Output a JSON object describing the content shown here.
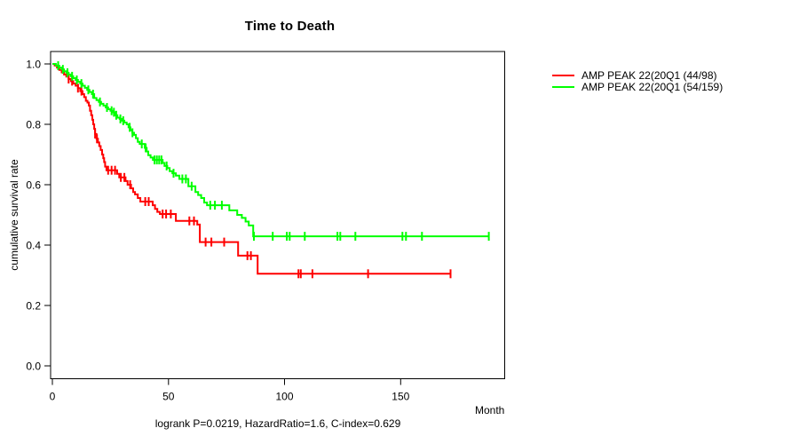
{
  "title": "Time to Death",
  "y_axis": {
    "label": "cumulative survival rate",
    "tick_labels": [
      "1.0",
      "0.8",
      "0.6",
      "0.4",
      "0.2",
      "0.0"
    ]
  },
  "x_axis": {
    "label": "Month",
    "tick_labels": [
      "0",
      "50",
      "100",
      "150"
    ]
  },
  "caption": "logrank P=0.0219, HazardRatio=1.6, C-index=0.629",
  "chart_data": {
    "type": "line",
    "subtype": "kaplan_meier_step",
    "title": "Time to Death",
    "xlabel": "Month",
    "ylabel": "cumulative survival rate",
    "xlim": [
      0,
      195
    ],
    "ylim": [
      0,
      1
    ],
    "x_ticks": [
      0,
      50,
      100,
      150
    ],
    "y_ticks": [
      0,
      0.2,
      0.4,
      0.6,
      0.8,
      1
    ],
    "grid": false,
    "legend_position": "right_outside",
    "annotation": "logrank P=0.0219, HazardRatio=1.6, C-index=0.629",
    "series": [
      {
        "name": "AMP PEAK 22(20Q1 (44/98)",
        "color": "#ff0000",
        "end_month": 171.5,
        "points": [
          [
            0,
            1.0
          ],
          [
            1,
            0.995
          ],
          [
            2,
            0.988
          ],
          [
            3,
            0.98
          ],
          [
            4,
            0.972
          ],
          [
            5,
            0.965
          ],
          [
            6,
            0.958
          ],
          [
            7,
            0.95
          ],
          [
            8,
            0.943
          ],
          [
            9,
            0.935
          ],
          [
            10,
            0.928
          ],
          [
            11,
            0.92
          ],
          [
            12,
            0.91
          ],
          [
            13,
            0.9
          ],
          [
            13.7,
            0.89
          ],
          [
            14.4,
            0.878
          ],
          [
            15.1,
            0.872
          ],
          [
            15.7,
            0.862
          ],
          [
            16.2,
            0.845
          ],
          [
            16.7,
            0.83
          ],
          [
            17.2,
            0.815
          ],
          [
            17.6,
            0.8
          ],
          [
            18,
            0.785
          ],
          [
            18.4,
            0.768
          ],
          [
            19,
            0.752
          ],
          [
            19.6,
            0.74
          ],
          [
            20.2,
            0.728
          ],
          [
            20.8,
            0.715
          ],
          [
            21.4,
            0.7
          ],
          [
            21.9,
            0.688
          ],
          [
            22.3,
            0.675
          ],
          [
            22.7,
            0.66
          ],
          [
            23.3,
            0.648
          ],
          [
            27.9,
            0.636
          ],
          [
            28.8,
            0.624
          ],
          [
            31.5,
            0.612
          ],
          [
            32.4,
            0.6
          ],
          [
            33.9,
            0.588
          ],
          [
            34.8,
            0.576
          ],
          [
            35.6,
            0.568
          ],
          [
            36.8,
            0.556
          ],
          [
            37.9,
            0.544
          ],
          [
            43.2,
            0.532
          ],
          [
            44.2,
            0.52
          ],
          [
            45.2,
            0.51
          ],
          [
            46.3,
            0.503
          ],
          [
            53.2,
            0.48
          ],
          [
            62.4,
            0.468
          ],
          [
            63.5,
            0.41
          ],
          [
            80,
            0.365
          ],
          [
            88.4,
            0.305
          ]
        ],
        "censor_months": [
          7,
          8.5,
          11,
          12.5,
          18.4,
          19.2,
          24,
          25.5,
          27,
          29.5,
          31,
          33.5,
          40,
          41.5,
          47.5,
          49,
          51,
          59,
          61,
          66,
          68.5,
          74,
          84,
          85.5,
          106,
          107,
          112,
          136,
          171.5
        ]
      },
      {
        "name": "AMP PEAK 22(20Q1 (54/159)",
        "color": "#00ff00",
        "end_month": 188,
        "points": [
          [
            0,
            1.0
          ],
          [
            1.5,
            0.994
          ],
          [
            3,
            0.988
          ],
          [
            4,
            0.982
          ],
          [
            5,
            0.976
          ],
          [
            6,
            0.971
          ],
          [
            7,
            0.965
          ],
          [
            8,
            0.959
          ],
          [
            9,
            0.953
          ],
          [
            10,
            0.947
          ],
          [
            11,
            0.941
          ],
          [
            12,
            0.935
          ],
          [
            13,
            0.928
          ],
          [
            14,
            0.921
          ],
          [
            15,
            0.914
          ],
          [
            16,
            0.907
          ],
          [
            17,
            0.9
          ],
          [
            18,
            0.887
          ],
          [
            19,
            0.88
          ],
          [
            20,
            0.874
          ],
          [
            21,
            0.868
          ],
          [
            22,
            0.862
          ],
          [
            23,
            0.856
          ],
          [
            24,
            0.85
          ],
          [
            25,
            0.845
          ],
          [
            26,
            0.84
          ],
          [
            27,
            0.83
          ],
          [
            28,
            0.822
          ],
          [
            29,
            0.818
          ],
          [
            30,
            0.812
          ],
          [
            31,
            0.806
          ],
          [
            32,
            0.8
          ],
          [
            32.8,
            0.79
          ],
          [
            33.6,
            0.78
          ],
          [
            34.4,
            0.772
          ],
          [
            35.2,
            0.765
          ],
          [
            36,
            0.754
          ],
          [
            36.8,
            0.742
          ],
          [
            37.6,
            0.735
          ],
          [
            39.8,
            0.722
          ],
          [
            40.6,
            0.71
          ],
          [
            41.3,
            0.698
          ],
          [
            42.3,
            0.69
          ],
          [
            43.3,
            0.682
          ],
          [
            47.5,
            0.672
          ],
          [
            48.3,
            0.662
          ],
          [
            49.5,
            0.655
          ],
          [
            50.5,
            0.645
          ],
          [
            51.7,
            0.638
          ],
          [
            53.2,
            0.63
          ],
          [
            54.7,
            0.619
          ],
          [
            58.6,
            0.595
          ],
          [
            61.6,
            0.576
          ],
          [
            62.8,
            0.566
          ],
          [
            64.1,
            0.556
          ],
          [
            65.4,
            0.541
          ],
          [
            66.6,
            0.532
          ],
          [
            76.2,
            0.515
          ],
          [
            79.6,
            0.5
          ],
          [
            81.6,
            0.49
          ],
          [
            83.2,
            0.478
          ],
          [
            84.6,
            0.465
          ],
          [
            86.5,
            0.429
          ]
        ],
        "censor_months": [
          2.5,
          4.5,
          6.5,
          8.5,
          10.5,
          12.5,
          15.5,
          17.5,
          20.5,
          23.5,
          25.5,
          26.5,
          27.5,
          29.3,
          30.5,
          33.3,
          34.5,
          38.5,
          40.2,
          44,
          45,
          46,
          47,
          49.2,
          52.2,
          56,
          57.5,
          60,
          68,
          70,
          73,
          86.8,
          94.9,
          101,
          102.2,
          108.7,
          122.8,
          124,
          130.5,
          150.8,
          152.3,
          159.2,
          188
        ]
      }
    ]
  }
}
